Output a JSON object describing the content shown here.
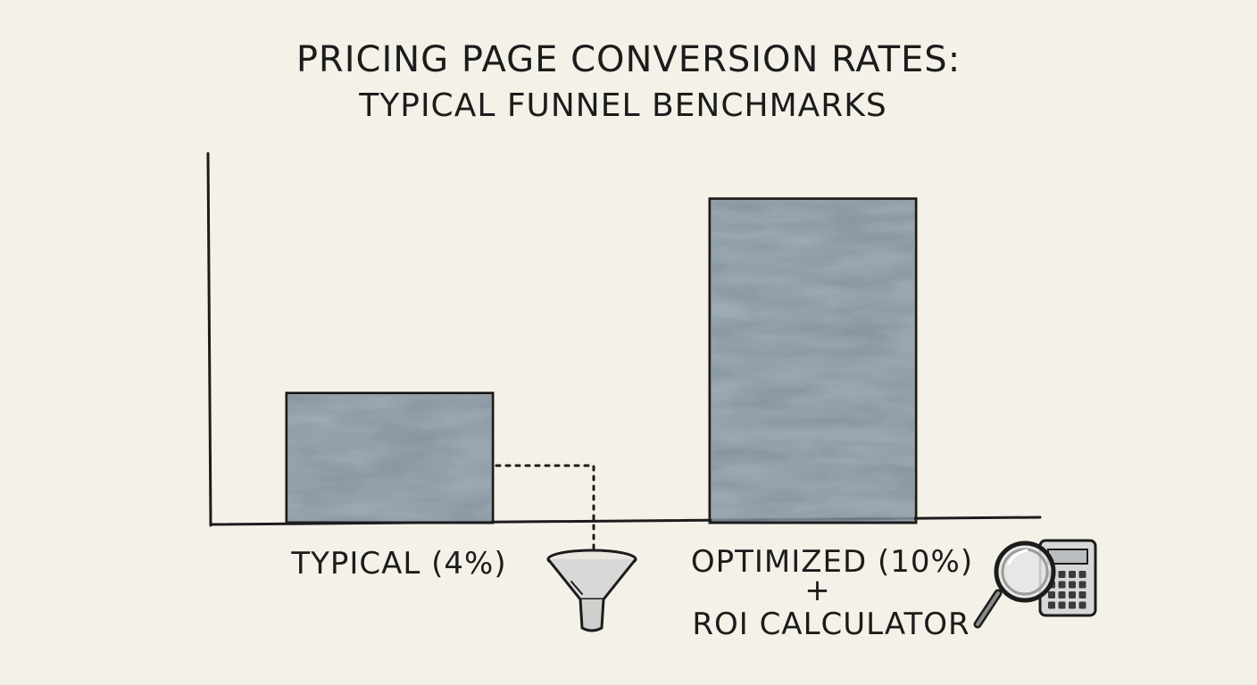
{
  "chart_data": {
    "type": "bar",
    "title": "PRICING PAGE CONVERSION RATES:",
    "subtitle": "TYPICAL FUNNEL BENCHMARKS",
    "categories": [
      "TYPICAL (4%)",
      "OPTIMIZED (10%)"
    ],
    "category_sublabels": [
      "",
      "ROI CALCULATOR"
    ],
    "category_connectors": [
      "",
      "+"
    ],
    "values": [
      4,
      10
    ],
    "ylim": [
      0,
      11.4
    ],
    "xlabel": "",
    "ylabel": "",
    "grid": false,
    "legend": "none",
    "bar_color": "#5c6f80",
    "icons": [
      "funnel-icon",
      "magnifier-icon",
      "calculator-icon"
    ]
  }
}
